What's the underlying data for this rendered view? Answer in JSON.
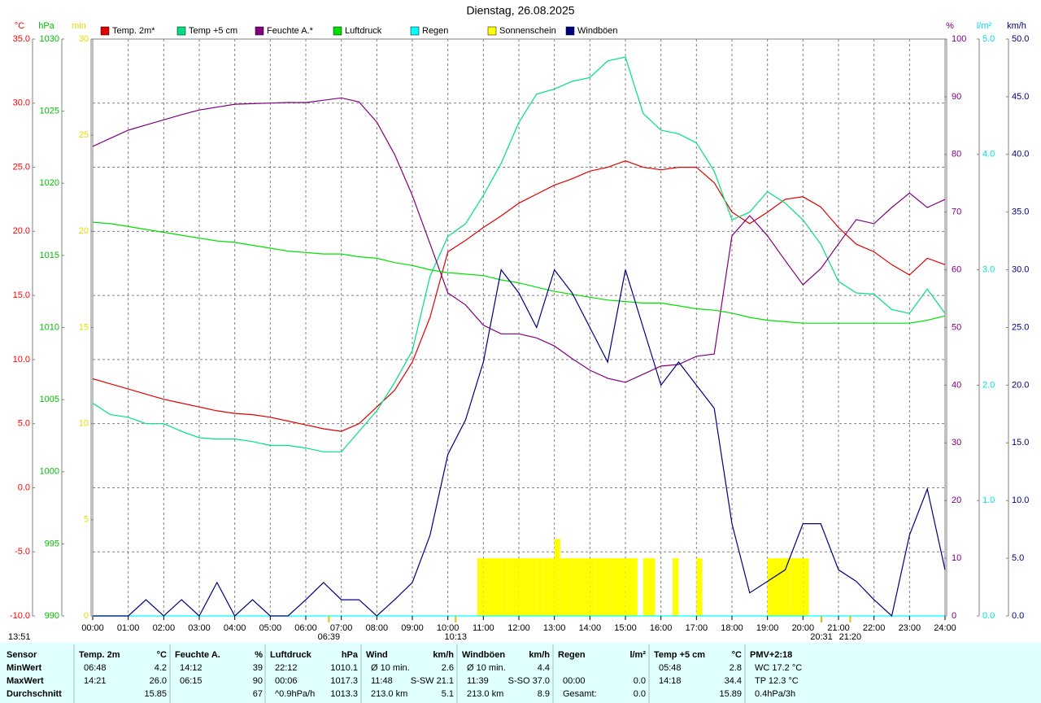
{
  "chart_data": {
    "type": "line",
    "title": "Dienstag, 26.08.2025",
    "timestamp": "13:51",
    "grid": true,
    "x": [
      0,
      0.5,
      1,
      1.5,
      2,
      2.5,
      3,
      3.5,
      4,
      4.5,
      5,
      5.5,
      6,
      6.5,
      7,
      7.5,
      8,
      8.5,
      9,
      9.5,
      10,
      10.5,
      11,
      11.5,
      12,
      12.5,
      13,
      13.5,
      14,
      14.5,
      15,
      15.5,
      16,
      16.5,
      17,
      17.5,
      18,
      18.5,
      19,
      19.5,
      20,
      20.5,
      21,
      21.5,
      22,
      22.5,
      23,
      23.5,
      24
    ],
    "xlim": [
      0,
      24
    ],
    "xticks": [
      {
        "value": 0,
        "label": "00:00"
      },
      {
        "value": 1,
        "label": "01:00"
      },
      {
        "value": 2,
        "label": "02:00"
      },
      {
        "value": 3,
        "label": "03:00"
      },
      {
        "value": 4,
        "label": "04:00"
      },
      {
        "value": 5,
        "label": "05:00"
      },
      {
        "value": 6,
        "label": "06:00"
      },
      {
        "value": 7,
        "label": "07:00"
      },
      {
        "value": 8,
        "label": "08:00"
      },
      {
        "value": 9,
        "label": "09:00"
      },
      {
        "value": 10,
        "label": "10:00"
      },
      {
        "value": 11,
        "label": "11:00"
      },
      {
        "value": 12,
        "label": "12:00"
      },
      {
        "value": 13,
        "label": "13:00"
      },
      {
        "value": 14,
        "label": "14:00"
      },
      {
        "value": 15,
        "label": "15:00"
      },
      {
        "value": 16,
        "label": "16:00"
      },
      {
        "value": 17,
        "label": "17:00"
      },
      {
        "value": 18,
        "label": "18:00"
      },
      {
        "value": 19,
        "label": "19:00"
      },
      {
        "value": 20,
        "label": "20:00"
      },
      {
        "value": 21,
        "label": "21:00"
      },
      {
        "value": 22,
        "label": "22:00"
      },
      {
        "value": 23,
        "label": "23:00"
      },
      {
        "value": 24,
        "label": "24:00"
      }
    ],
    "axes": [
      {
        "unit": "°C",
        "color": "#ff0000",
        "lim": [
          -10,
          35
        ],
        "ticks": [
          {
            "value": -10,
            "label": "-10.0"
          },
          {
            "value": -5,
            "label": "-5.0"
          },
          {
            "value": 0,
            "label": "0.0"
          },
          {
            "value": 5,
            "label": "5.0"
          },
          {
            "value": 10,
            "label": "10.0"
          },
          {
            "value": 15,
            "label": "15.0"
          },
          {
            "value": 20,
            "label": "20.0"
          },
          {
            "value": 25,
            "label": "25.0"
          },
          {
            "value": 30,
            "label": "30.0"
          },
          {
            "value": 35,
            "label": "35.0"
          }
        ]
      },
      {
        "unit": "hPa",
        "color": "#00c000",
        "lim": [
          990,
          1030
        ],
        "ticks": [
          990,
          995,
          1000,
          1005,
          1010,
          1015,
          1020,
          1025,
          1030
        ]
      },
      {
        "unit": "min",
        "color": "#e0e000",
        "lim": [
          0,
          30
        ],
        "ticks": [
          0,
          5,
          10,
          15,
          20,
          25,
          30
        ]
      },
      {
        "unit": "%",
        "color": "#800080",
        "lim": [
          0,
          100
        ],
        "ticks": [
          0,
          10,
          20,
          30,
          40,
          50,
          60,
          70,
          80,
          90,
          100
        ]
      },
      {
        "unit": "l/m²",
        "color": "#00e0e0",
        "lim": [
          0,
          5
        ],
        "ticks": [
          {
            "value": 0,
            "label": "0.0"
          },
          {
            "value": 1,
            "label": "1.0"
          },
          {
            "value": 2,
            "label": "2.0"
          },
          {
            "value": 3,
            "label": "3.0"
          },
          {
            "value": 4,
            "label": "4.0"
          },
          {
            "value": 5,
            "label": "5.0"
          }
        ]
      },
      {
        "unit": "km/h",
        "color": "#000080",
        "lim": [
          0,
          50
        ],
        "ticks": [
          {
            "value": 0,
            "label": "0.0"
          },
          {
            "value": 5,
            "label": "5.0"
          },
          {
            "value": 10,
            "label": "10.0"
          },
          {
            "value": 15,
            "label": "15.0"
          },
          {
            "value": 20,
            "label": "20.0"
          },
          {
            "value": 25,
            "label": "25.0"
          },
          {
            "value": 30,
            "label": "30.0"
          },
          {
            "value": 35,
            "label": "35.0"
          },
          {
            "value": 40,
            "label": "40.0"
          },
          {
            "value": 45,
            "label": "45.0"
          },
          {
            "value": 50,
            "label": "50.0"
          }
        ]
      }
    ],
    "series": [
      {
        "name": "Temp. 2m*",
        "color": "#e00000",
        "axis": 0,
        "values": [
          8.5,
          8.1,
          7.7,
          7.3,
          6.9,
          6.6,
          6.3,
          6.0,
          5.8,
          5.7,
          5.5,
          5.2,
          4.9,
          4.6,
          4.4,
          5.0,
          6.3,
          7.6,
          9.8,
          13.3,
          18.4,
          19.3,
          20.3,
          21.2,
          22.2,
          22.9,
          23.6,
          24.1,
          24.7,
          25.0,
          25.5,
          25.0,
          24.8,
          25.0,
          25.0,
          23.8,
          21.5,
          20.6,
          21.5,
          22.5,
          22.7,
          21.9,
          20.3,
          19.0,
          18.4,
          17.4,
          16.6,
          17.9,
          17.4
        ]
      },
      {
        "name": "Temp +5 cm",
        "color": "#00e080",
        "axis": 0,
        "values": [
          6.6,
          5.7,
          5.5,
          5.0,
          5.0,
          4.4,
          3.9,
          3.8,
          3.8,
          3.6,
          3.3,
          3.3,
          3.1,
          2.8,
          2.8,
          4.4,
          6.0,
          8.2,
          10.7,
          16.5,
          19.6,
          20.6,
          22.8,
          25.3,
          28.5,
          30.7,
          31.1,
          31.7,
          32.0,
          33.3,
          33.6,
          29.2,
          27.9,
          27.6,
          26.9,
          24.7,
          20.9,
          21.5,
          23.1,
          22.2,
          20.9,
          19.0,
          16.1,
          15.2,
          15.1,
          13.9,
          13.6,
          15.5,
          13.6
        ]
      },
      {
        "name": "Feuchte A.*",
        "color": "#800080",
        "axis": 3,
        "values": [
          81.4,
          82.8,
          84.2,
          85.1,
          86.0,
          86.9,
          87.7,
          88.2,
          88.7,
          88.8,
          88.9,
          89.0,
          89.0,
          89.4,
          89.8,
          89.1,
          85.6,
          80.0,
          72.9,
          64.5,
          56.0,
          53.9,
          50.4,
          48.9,
          48.9,
          48.2,
          46.8,
          44.6,
          42.6,
          41.2,
          40.5,
          41.9,
          43.3,
          43.6,
          45.0,
          45.4,
          65.9,
          69.4,
          65.9,
          61.6,
          57.4,
          60.2,
          64.5,
          68.7,
          68.0,
          70.8,
          73.3,
          70.8,
          72.2
        ]
      },
      {
        "name": "Luftdruck",
        "color": "#00e000",
        "axis": 1,
        "values": [
          1017.3,
          1017.2,
          1017.0,
          1016.8,
          1016.6,
          1016.4,
          1016.2,
          1016.0,
          1015.9,
          1015.7,
          1015.5,
          1015.3,
          1015.2,
          1015.1,
          1015.1,
          1014.9,
          1014.8,
          1014.5,
          1014.3,
          1014.0,
          1013.8,
          1013.7,
          1013.6,
          1013.3,
          1013.1,
          1012.8,
          1012.5,
          1012.3,
          1012.1,
          1011.9,
          1011.8,
          1011.7,
          1011.7,
          1011.5,
          1011.3,
          1011.2,
          1011.0,
          1010.7,
          1010.5,
          1010.4,
          1010.3,
          1010.3,
          1010.3,
          1010.3,
          1010.3,
          1010.3,
          1010.3,
          1010.5,
          1010.8
        ]
      },
      {
        "name": "Regen",
        "color": "#00ffff",
        "axis": 4,
        "values": [
          0,
          0,
          0,
          0,
          0,
          0,
          0,
          0,
          0,
          0,
          0,
          0,
          0,
          0,
          0,
          0,
          0,
          0,
          0,
          0,
          0,
          0,
          0,
          0,
          0,
          0,
          0,
          0,
          0,
          0,
          0,
          0,
          0,
          0,
          0,
          0,
          0,
          0,
          0,
          0,
          0,
          0,
          0,
          0,
          0,
          0,
          0,
          0,
          0
        ]
      },
      {
        "name": "Sonnenschein",
        "color": "#ffff00",
        "axis": 2,
        "style": "bar",
        "x": [
          10.83,
          11,
          11.17,
          11.33,
          11.5,
          11.67,
          11.83,
          12,
          12.17,
          12.33,
          12.5,
          12.67,
          12.83,
          13,
          13.17,
          13.33,
          13.5,
          13.67,
          13.83,
          14,
          14.17,
          14.33,
          14.5,
          14.67,
          14.83,
          15,
          15.17,
          15.5,
          15.67,
          16.33,
          17,
          19,
          19.17,
          19.33,
          19.5,
          19.67,
          19.83,
          20
        ],
        "values": [
          3,
          3,
          3,
          3,
          3,
          3,
          3,
          3,
          3,
          3,
          3,
          3,
          3,
          4,
          3,
          3,
          3,
          3,
          3,
          3,
          3,
          3,
          3,
          3,
          3,
          3,
          3,
          3,
          3,
          3,
          3,
          3,
          3,
          3,
          3,
          3,
          3,
          3
        ]
      },
      {
        "name": "Windböen",
        "color": "#000080",
        "axis": 5,
        "values": [
          0,
          0,
          0,
          1.4,
          0,
          1.4,
          0,
          2.9,
          0,
          1.4,
          0,
          0,
          1.4,
          2.9,
          1.4,
          1.4,
          0,
          1.4,
          2.9,
          7,
          14,
          17,
          22,
          30,
          28,
          25,
          30,
          28,
          25,
          22,
          30,
          25,
          20,
          22,
          20,
          18,
          8,
          2,
          3,
          4,
          8,
          8,
          4,
          3,
          1.4,
          0,
          7,
          11,
          4
        ]
      }
    ],
    "annotations": [
      {
        "x": 6.65,
        "label": "06:39"
      },
      {
        "x": 10.22,
        "label": "10:13"
      },
      {
        "x": 20.52,
        "label": "20:31"
      },
      {
        "x": 21.33,
        "label": "21:20"
      }
    ]
  },
  "summary": {
    "row_labels": [
      "Sensor",
      "MinWert",
      "MaxWert",
      "Durchschnitt"
    ],
    "columns": [
      {
        "header": "Temp. 2m",
        "unit": "°C",
        "rows": [
          [
            "06:48",
            "4.2"
          ],
          [
            "14:21",
            "26.0"
          ],
          [
            "15.85"
          ]
        ]
      },
      {
        "header": "Feuchte A.",
        "unit": "%",
        "rows": [
          [
            "14:12",
            "39"
          ],
          [
            "06:15",
            "90"
          ],
          [
            "67"
          ]
        ]
      },
      {
        "header": "Luftdruck",
        "unit": "hPa",
        "rows": [
          [
            "22:12",
            "1010.1"
          ],
          [
            "00:06",
            "1017.3"
          ],
          [
            "^0.9hPa/h",
            "1013.3"
          ]
        ]
      },
      {
        "header": "Wind",
        "unit": "km/h",
        "rows": [
          [
            "Ø 10 min.",
            "2.6"
          ],
          [
            "11:48",
            "S-SW 21.1"
          ],
          [
            "213.0 km",
            "5.1"
          ]
        ]
      },
      {
        "header": "Windböen",
        "unit": "km/h",
        "rows": [
          [
            "Ø 10 min.",
            "4.4"
          ],
          [
            "11:39",
            "S-SO 37.0"
          ],
          [
            "213.0 km",
            "8.9"
          ]
        ]
      },
      {
        "header": "Regen",
        "unit": "l/m²",
        "rows": [
          [],
          [
            "00:00",
            "0.0"
          ],
          [
            "Gesamt:",
            "0.0"
          ]
        ]
      },
      {
        "header": "Temp +5 cm",
        "unit": "°C",
        "rows": [
          [
            "05:48",
            "2.8"
          ],
          [
            "14:18",
            "34.4"
          ],
          [
            "15.89"
          ]
        ]
      },
      {
        "header": "PMV+2:18",
        "rows": [
          [
            "WC 17.2 °C"
          ],
          [
            "TP 12.3 °C"
          ],
          [
            "0.4hPa/3h"
          ]
        ]
      }
    ]
  }
}
